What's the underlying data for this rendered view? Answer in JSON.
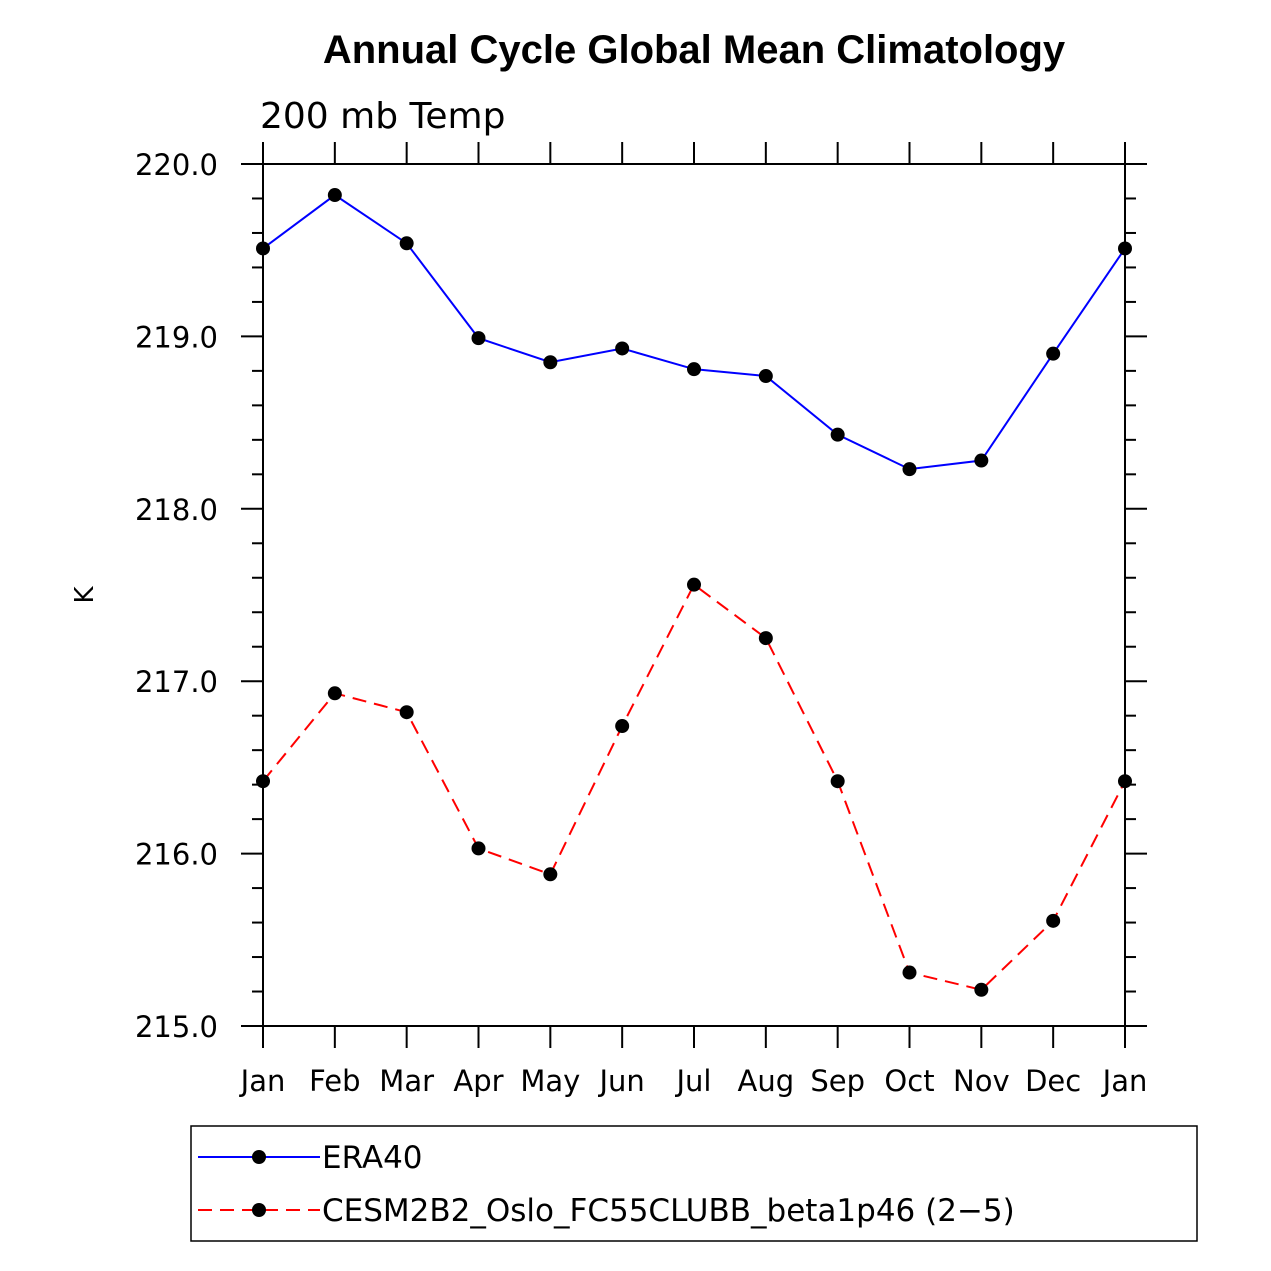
{
  "chart_data": {
    "type": "line",
    "title": "Annual Cycle Global Mean Climatology",
    "subtitle": "200 mb Temp",
    "xlabel": "",
    "ylabel": "K",
    "categories": [
      "Jan",
      "Feb",
      "Mar",
      "Apr",
      "May",
      "Jun",
      "Jul",
      "Aug",
      "Sep",
      "Oct",
      "Nov",
      "Dec",
      "Jan"
    ],
    "ylim": [
      215.0,
      220.0
    ],
    "yticks": [
      215.0,
      216.0,
      217.0,
      218.0,
      219.0,
      220.0
    ],
    "ytick_labels": [
      "215.0",
      "216.0",
      "217.0",
      "218.0",
      "219.0",
      "220.0"
    ],
    "grid": false,
    "legend_position": "bottom",
    "series": [
      {
        "name": "ERA40",
        "color": "#0000ff",
        "style": "solid",
        "marker": "filled-circle",
        "values": [
          219.51,
          219.82,
          219.54,
          218.99,
          218.85,
          218.93,
          218.81,
          218.77,
          218.43,
          218.23,
          218.28,
          218.9,
          219.51
        ]
      },
      {
        "name": "CESM2B2_Oslo_FC55CLUBB_beta1p46 (2−5)",
        "color": "#ff0000",
        "style": "dashed",
        "marker": "filled-circle",
        "values": [
          216.42,
          216.93,
          216.82,
          216.03,
          215.88,
          216.74,
          217.56,
          217.25,
          216.42,
          215.31,
          215.21,
          215.61,
          216.42
        ]
      }
    ]
  }
}
